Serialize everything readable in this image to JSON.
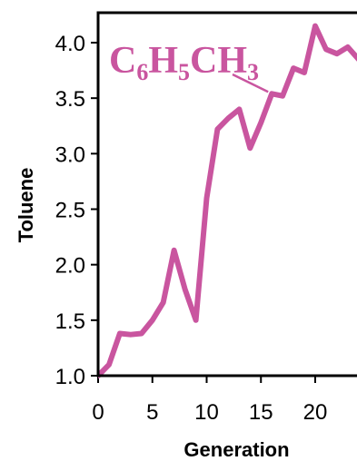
{
  "chart_data": {
    "type": "line",
    "title": "",
    "xlabel": "Generation",
    "ylabel": "Toluene",
    "xlim": [
      0,
      24
    ],
    "ylim": [
      1.0,
      4.2
    ],
    "xticks": [
      0,
      5,
      10,
      15,
      20
    ],
    "yticks": [
      1.0,
      1.5,
      2.0,
      2.5,
      3.0,
      3.5,
      4.0
    ],
    "xtick_labels": [
      "0",
      "5",
      "10",
      "15",
      "20"
    ],
    "ytick_labels": [
      "1.0",
      "1.5",
      "2.0",
      "2.5",
      "3.0",
      "3.5",
      "4.0"
    ],
    "grid": false,
    "series": [
      {
        "color": "#c9559f",
        "x": [
          0,
          1,
          2,
          3,
          4,
          5,
          6,
          7,
          8,
          9,
          10,
          11,
          12,
          13,
          14,
          15,
          16,
          17,
          18,
          19,
          20,
          21,
          22,
          23,
          24
        ],
        "y": [
          1.0,
          1.1,
          1.38,
          1.37,
          1.38,
          1.5,
          1.66,
          2.13,
          1.78,
          1.5,
          2.6,
          3.22,
          3.32,
          3.4,
          3.05,
          3.28,
          3.54,
          3.52,
          3.77,
          3.73,
          4.15,
          3.94,
          3.9,
          3.96,
          3.85
        ]
      }
    ],
    "annotation": {
      "parts": [
        {
          "text": "C",
          "sub": false
        },
        {
          "text": "6",
          "sub": true
        },
        {
          "text": "H",
          "sub": false
        },
        {
          "text": "5",
          "sub": true
        },
        {
          "text": "CH",
          "sub": false
        },
        {
          "text": "3",
          "sub": true
        }
      ],
      "points_to_x": 16,
      "color": "#c9559f"
    }
  }
}
